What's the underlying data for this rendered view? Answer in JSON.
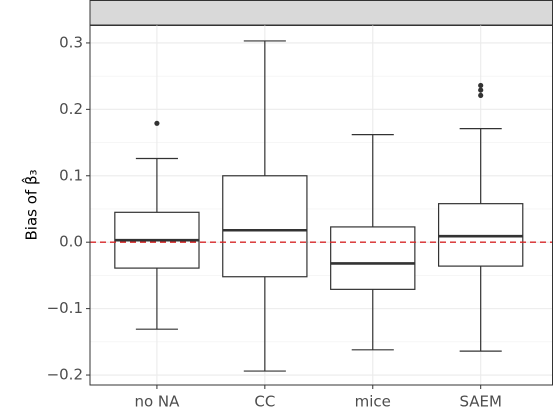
{
  "chart_data": {
    "type": "box",
    "y_label": "Bias of β̂₃",
    "categories": [
      "no NA",
      "CC",
      "mice",
      "SAEM"
    ],
    "boxes": [
      {
        "low": -0.131,
        "q1": -0.039,
        "median": 0.003,
        "q3": 0.045,
        "high": 0.126,
        "outliers": [
          0.179
        ]
      },
      {
        "low": -0.194,
        "q1": -0.052,
        "median": 0.018,
        "q3": 0.1,
        "high": 0.303,
        "outliers": []
      },
      {
        "low": -0.162,
        "q1": -0.071,
        "median": -0.032,
        "q3": 0.023,
        "high": 0.162,
        "outliers": []
      },
      {
        "low": -0.164,
        "q1": -0.036,
        "median": 0.009,
        "q3": 0.058,
        "high": 0.171,
        "outliers": [
          0.236,
          0.229,
          0.221
        ]
      }
    ],
    "color": "#333333",
    "hline": 0,
    "hline_color": "#d62728",
    "ylim": [
      -0.215,
      0.327
    ],
    "yticks": [
      {
        "value": -0.2,
        "label": "−0.2"
      },
      {
        "value": -0.1,
        "label": "−0.1"
      },
      {
        "value": 0,
        "label": "0.0"
      },
      0.1,
      0.2,
      0.3
    ],
    "grid": true
  }
}
